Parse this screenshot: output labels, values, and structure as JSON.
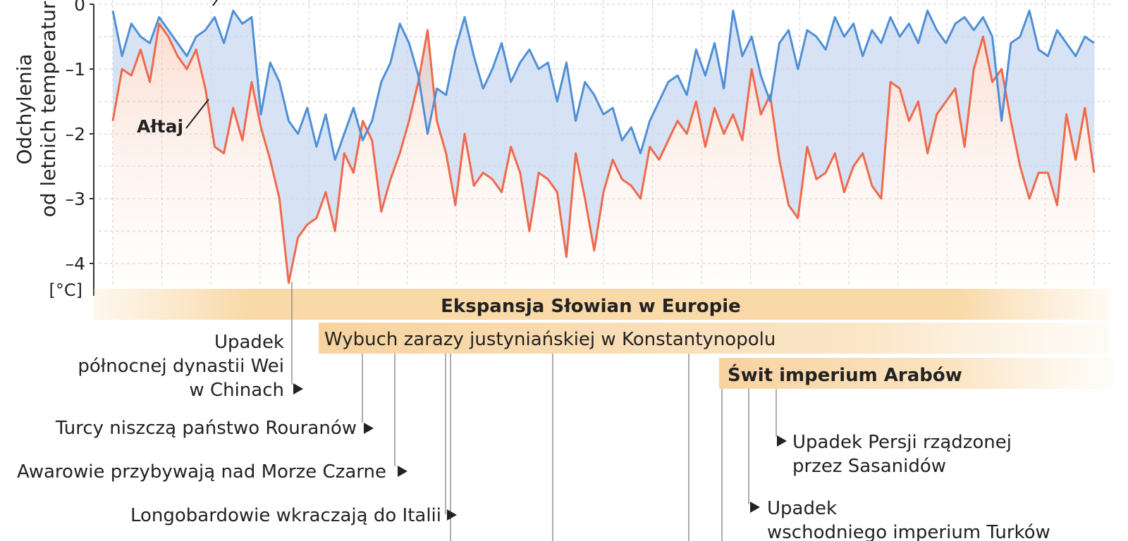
{
  "chart_data": {
    "type": "line",
    "ylabel_line1": "Odchylenia",
    "ylabel_line2": "od letnich temperatur",
    "unit": "[°C]",
    "ylim": [
      -4.4,
      0.1
    ],
    "yticks": [
      {
        "v": 0,
        "label": "0"
      },
      {
        "v": -1,
        "label": "–1"
      },
      {
        "v": -2,
        "label": "–2"
      },
      {
        "v": -3,
        "label": "–3"
      },
      {
        "v": -4,
        "label": "–4"
      }
    ],
    "grid": true,
    "series": [
      {
        "name": "Ałtaj",
        "color": "#ee6a4b",
        "values": [
          -1.8,
          -1.0,
          -1.1,
          -0.7,
          -1.2,
          -0.3,
          -0.5,
          -0.8,
          -1.0,
          -0.7,
          -1.3,
          -2.2,
          -2.3,
          -1.6,
          -2.1,
          -1.2,
          -1.9,
          -2.4,
          -3.0,
          -4.3,
          -3.6,
          -3.4,
          -3.3,
          -2.9,
          -3.5,
          -2.3,
          -2.6,
          -1.8,
          -2.1,
          -3.2,
          -2.7,
          -2.3,
          -1.8,
          -1.2,
          -0.4,
          -1.8,
          -2.3,
          -3.1,
          -2.0,
          -2.8,
          -2.6,
          -2.7,
          -2.9,
          -2.2,
          -2.6,
          -3.5,
          -2.6,
          -2.7,
          -2.9,
          -3.9,
          -2.3,
          -3.0,
          -3.8,
          -2.9,
          -2.4,
          -2.7,
          -2.8,
          -3.0,
          -2.2,
          -2.4,
          -2.1,
          -1.8,
          -2.0,
          -1.5,
          -2.2,
          -1.6,
          -2.0,
          -1.7,
          -2.1,
          -1.0,
          -1.7,
          -1.4,
          -2.4,
          -3.1,
          -3.3,
          -2.2,
          -2.7,
          -2.6,
          -2.3,
          -2.9,
          -2.5,
          -2.3,
          -2.8,
          -3.0,
          -1.2,
          -1.3,
          -1.8,
          -1.5,
          -2.3,
          -1.7,
          -1.5,
          -1.3,
          -2.2,
          -1.0,
          -0.5,
          -1.2,
          -1.0,
          -1.8,
          -2.5,
          -3.0,
          -2.6,
          -2.6,
          -3.1,
          -1.7,
          -2.4,
          -1.6,
          -2.6
        ]
      },
      {
        "name": "",
        "color": "#4f8fd6",
        "values": [
          -0.1,
          -0.8,
          -0.3,
          -0.5,
          -0.6,
          -0.2,
          -0.4,
          -0.6,
          -0.8,
          -0.5,
          -0.4,
          -0.2,
          -0.6,
          -0.1,
          -0.3,
          -0.2,
          -1.7,
          -0.9,
          -1.2,
          -1.8,
          -2.0,
          -1.6,
          -2.2,
          -1.7,
          -2.4,
          -2.0,
          -1.6,
          -2.1,
          -1.8,
          -1.2,
          -0.9,
          -0.3,
          -0.6,
          -1.1,
          -2.0,
          -1.3,
          -1.4,
          -0.7,
          -0.2,
          -0.8,
          -1.3,
          -1.0,
          -0.6,
          -1.2,
          -0.9,
          -0.7,
          -1.0,
          -0.9,
          -1.5,
          -0.9,
          -1.8,
          -1.2,
          -1.4,
          -1.7,
          -1.6,
          -2.1,
          -1.9,
          -2.3,
          -1.8,
          -1.5,
          -1.2,
          -1.1,
          -1.4,
          -0.7,
          -1.1,
          -0.6,
          -1.3,
          -0.1,
          -0.8,
          -0.5,
          -1.1,
          -1.5,
          -0.6,
          -0.4,
          -1.0,
          -0.4,
          -0.5,
          -0.7,
          -0.2,
          -0.5,
          -0.3,
          -0.8,
          -0.4,
          -0.6,
          -0.2,
          -0.5,
          -0.3,
          -0.6,
          -0.1,
          -0.4,
          -0.6,
          -0.3,
          -0.2,
          -0.4,
          -0.2,
          -0.5,
          -1.8,
          -0.6,
          -0.5,
          -0.1,
          -0.7,
          -0.8,
          -0.4,
          -0.6,
          -0.8,
          -0.5,
          -0.6
        ]
      }
    ],
    "events": {
      "bars": [
        {
          "label": "Ekspansja Słowian w Europie",
          "bold": true
        },
        {
          "label": "Wybuch zarazy justyniańskiej w Konstantynopolu",
          "bold": false
        },
        {
          "label": "Świt imperium Arabów",
          "bold": true
        }
      ],
      "left": [
        {
          "lines": [
            "Upadek",
            "północnej dynastii Wei",
            "w Chinach"
          ]
        },
        {
          "lines": [
            "Turcy niszczą państwo Rouranów"
          ]
        },
        {
          "lines": [
            "Awarowie przybywają nad Morze Czarne"
          ]
        },
        {
          "lines": [
            "Longobardowie wkraczają do Italii"
          ]
        }
      ],
      "right": [
        {
          "lines": [
            "Upadek Persji rządzonej",
            "przez Sasanidów"
          ]
        },
        {
          "lines": [
            "Upadek",
            "wschodniego imperium Turków"
          ]
        }
      ]
    }
  }
}
